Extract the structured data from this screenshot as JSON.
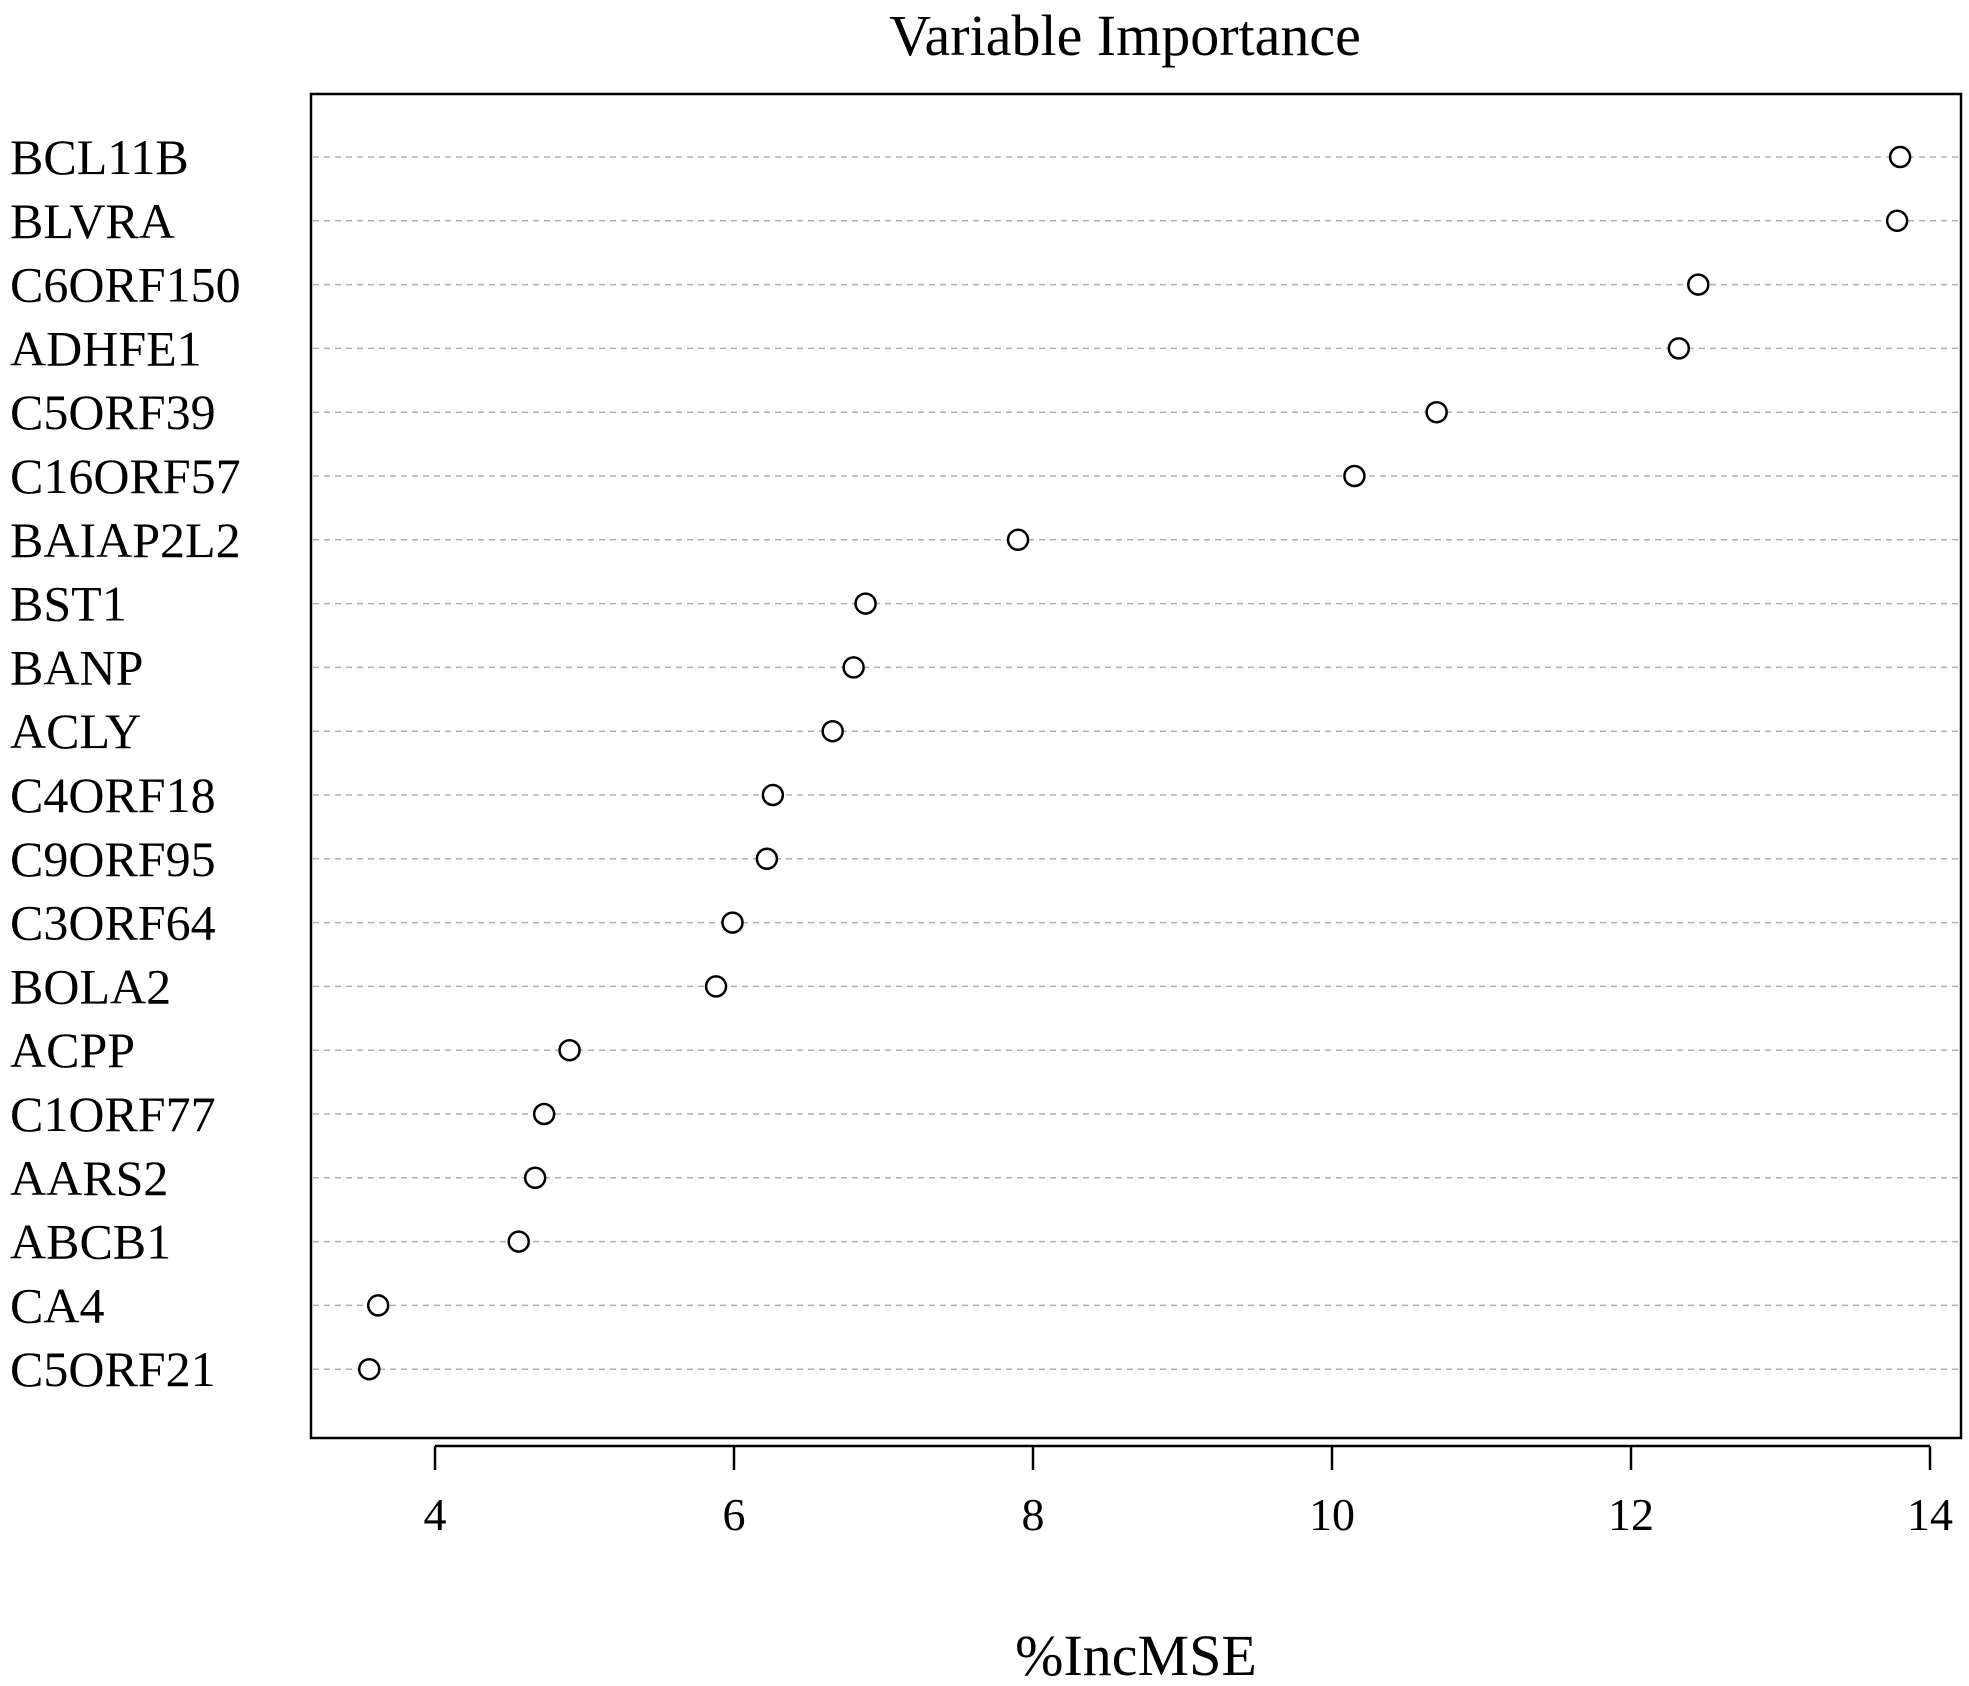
{
  "chart_data": {
    "type": "scatter",
    "title": "Variable Importance",
    "xlabel": "%IncMSE",
    "ylabel": "",
    "xlim": [
      3.2,
      14.2
    ],
    "xticks": [
      "4",
      "6",
      "8",
      "10",
      "12",
      "14"
    ],
    "grid": "dashed horizontal guide per variable",
    "categories": [
      "BCL11B",
      "BLVRA",
      "C6ORF150",
      "ADHFE1",
      "C5ORF39",
      "C16ORF57",
      "BAIAP2L2",
      "BST1",
      "BANP",
      "ACLY",
      "C4ORF18",
      "C9ORF95",
      "C3ORF64",
      "BOLA2",
      "ACPP",
      "C1ORF77",
      "AARS2",
      "ABCB1",
      "CA4",
      "C5ORF21"
    ],
    "values": [
      13.8,
      13.78,
      12.45,
      12.32,
      10.7,
      10.15,
      7.9,
      6.88,
      6.8,
      6.66,
      6.26,
      6.22,
      5.99,
      5.88,
      4.9,
      4.73,
      4.67,
      4.56,
      3.62,
      3.56
    ]
  }
}
